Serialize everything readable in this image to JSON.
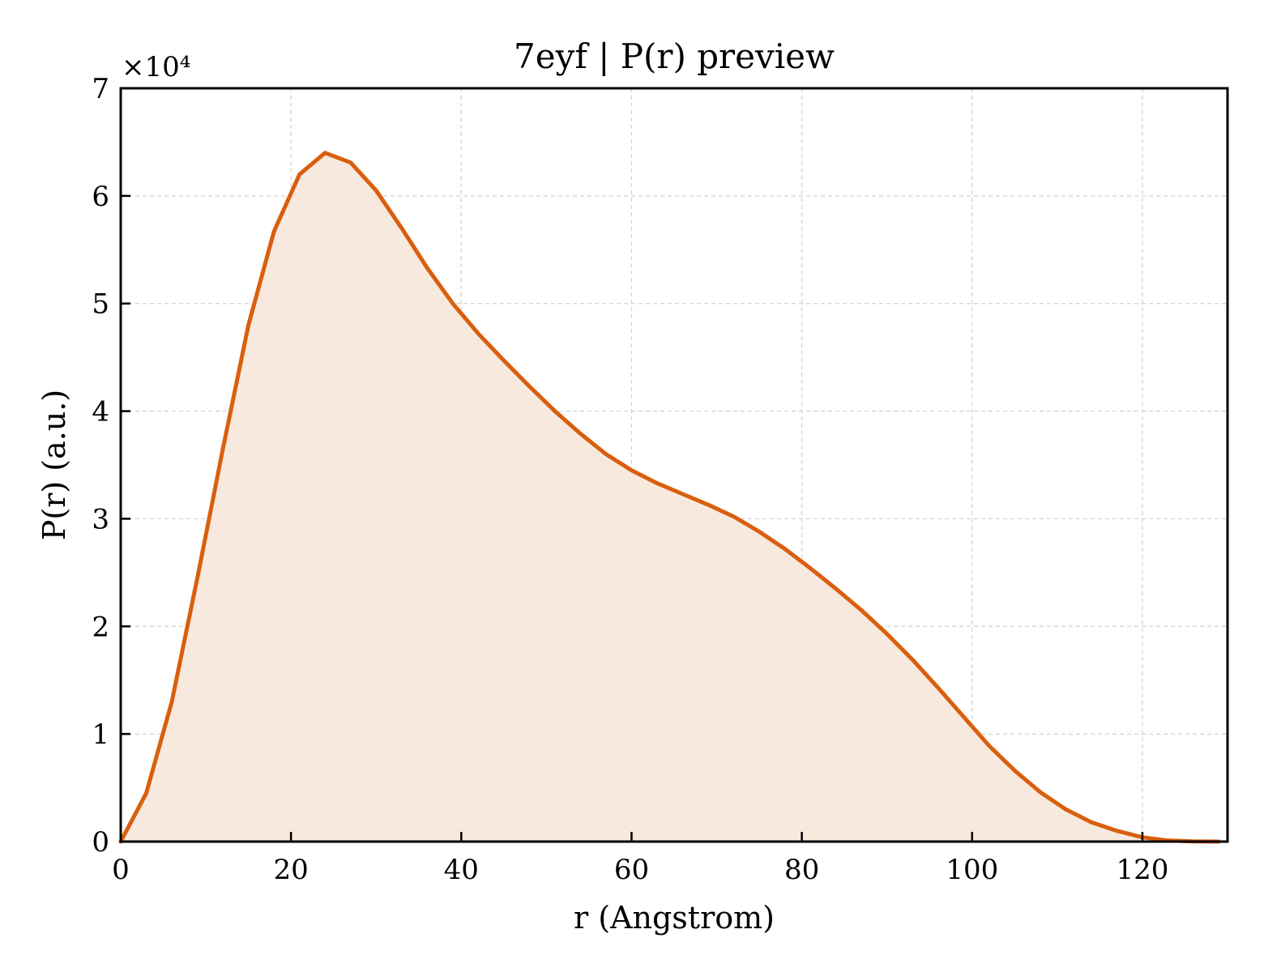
{
  "chart_data": {
    "type": "area",
    "title": "7eyf | P(r) preview",
    "xlabel": "r (Angstrom)",
    "ylabel": "P(r) (a.u.)",
    "y_offset_label": "×10⁴",
    "y_multiplier": 10000,
    "xlim": [
      0,
      130
    ],
    "ylim": [
      0,
      70000
    ],
    "x_ticks": [
      0,
      20,
      40,
      60,
      80,
      100,
      120
    ],
    "x_tick_labels": [
      "0",
      "20",
      "40",
      "60",
      "80",
      "100",
      "120"
    ],
    "y_ticks": [
      0,
      10000,
      20000,
      30000,
      40000,
      50000,
      60000,
      70000
    ],
    "y_tick_labels": [
      "0",
      "1",
      "2",
      "3",
      "4",
      "5",
      "6",
      "7"
    ],
    "grid": true,
    "line_color": "#d95f0e",
    "fill_color": "#f8e9df",
    "series": [
      {
        "x": [
          0,
          3,
          6,
          9,
          12,
          15,
          18,
          21,
          24,
          27,
          30,
          33,
          36,
          39,
          42,
          45,
          48,
          51,
          54,
          57,
          60,
          63,
          66,
          69,
          72,
          75,
          78,
          81,
          84,
          87,
          90,
          93,
          96,
          99,
          102,
          105,
          108,
          111,
          114,
          117,
          120,
          123,
          126,
          129
        ],
        "y": [
          0,
          4500,
          13000,
          24500,
          36500,
          48000,
          56700,
          62000,
          64000,
          63100,
          60500,
          57000,
          53300,
          50000,
          47200,
          44700,
          42300,
          40000,
          37900,
          36000,
          34500,
          33300,
          32300,
          31300,
          30200,
          28800,
          27200,
          25400,
          23500,
          21500,
          19300,
          16900,
          14300,
          11600,
          8900,
          6600,
          4600,
          3000,
          1800,
          1000,
          400,
          100,
          20,
          0
        ]
      }
    ]
  }
}
